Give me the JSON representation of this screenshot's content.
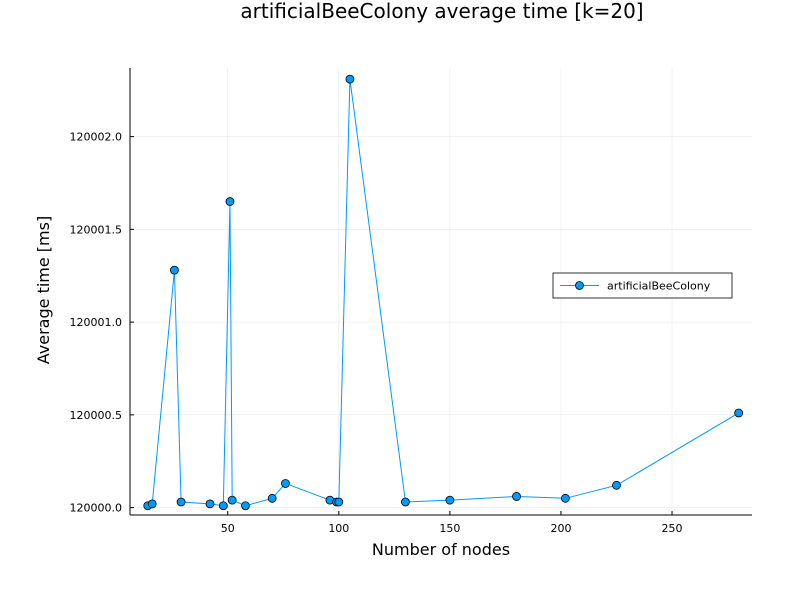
{
  "chart_data": {
    "type": "line",
    "title": "artificialBeeColony average time [k=20]",
    "xlabel": "Number of nodes",
    "ylabel": "Average time [ms]",
    "xlim": [
      6,
      286
    ],
    "ylim": [
      119999.96,
      120002.37
    ],
    "xticks": [
      50,
      100,
      150,
      200,
      250
    ],
    "xtick_labels": [
      "50",
      "100",
      "150",
      "200",
      "250"
    ],
    "yticks": [
      120000.0,
      120000.5,
      120001.0,
      120001.5,
      120002.0
    ],
    "ytick_labels": [
      "120000.0",
      "120000.5",
      "120001.0",
      "120001.5",
      "120002.0"
    ],
    "grid": true,
    "legend_position": "right",
    "series": [
      {
        "name": "artificialBeeColony",
        "color": "#009AFA",
        "x": [
          14,
          16,
          26,
          29,
          42,
          48,
          51,
          52,
          58,
          70,
          76,
          96,
          99,
          100,
          105,
          130,
          150,
          180,
          202,
          225,
          280
        ],
        "y": [
          120000.01,
          120000.02,
          120001.28,
          120000.03,
          120000.02,
          120000.01,
          120001.65,
          120000.04,
          120000.01,
          120000.05,
          120000.13,
          120000.04,
          120000.03,
          120000.03,
          120002.31,
          120000.03,
          120000.04,
          120000.06,
          120000.05,
          120000.12,
          120000.51
        ]
      }
    ]
  }
}
